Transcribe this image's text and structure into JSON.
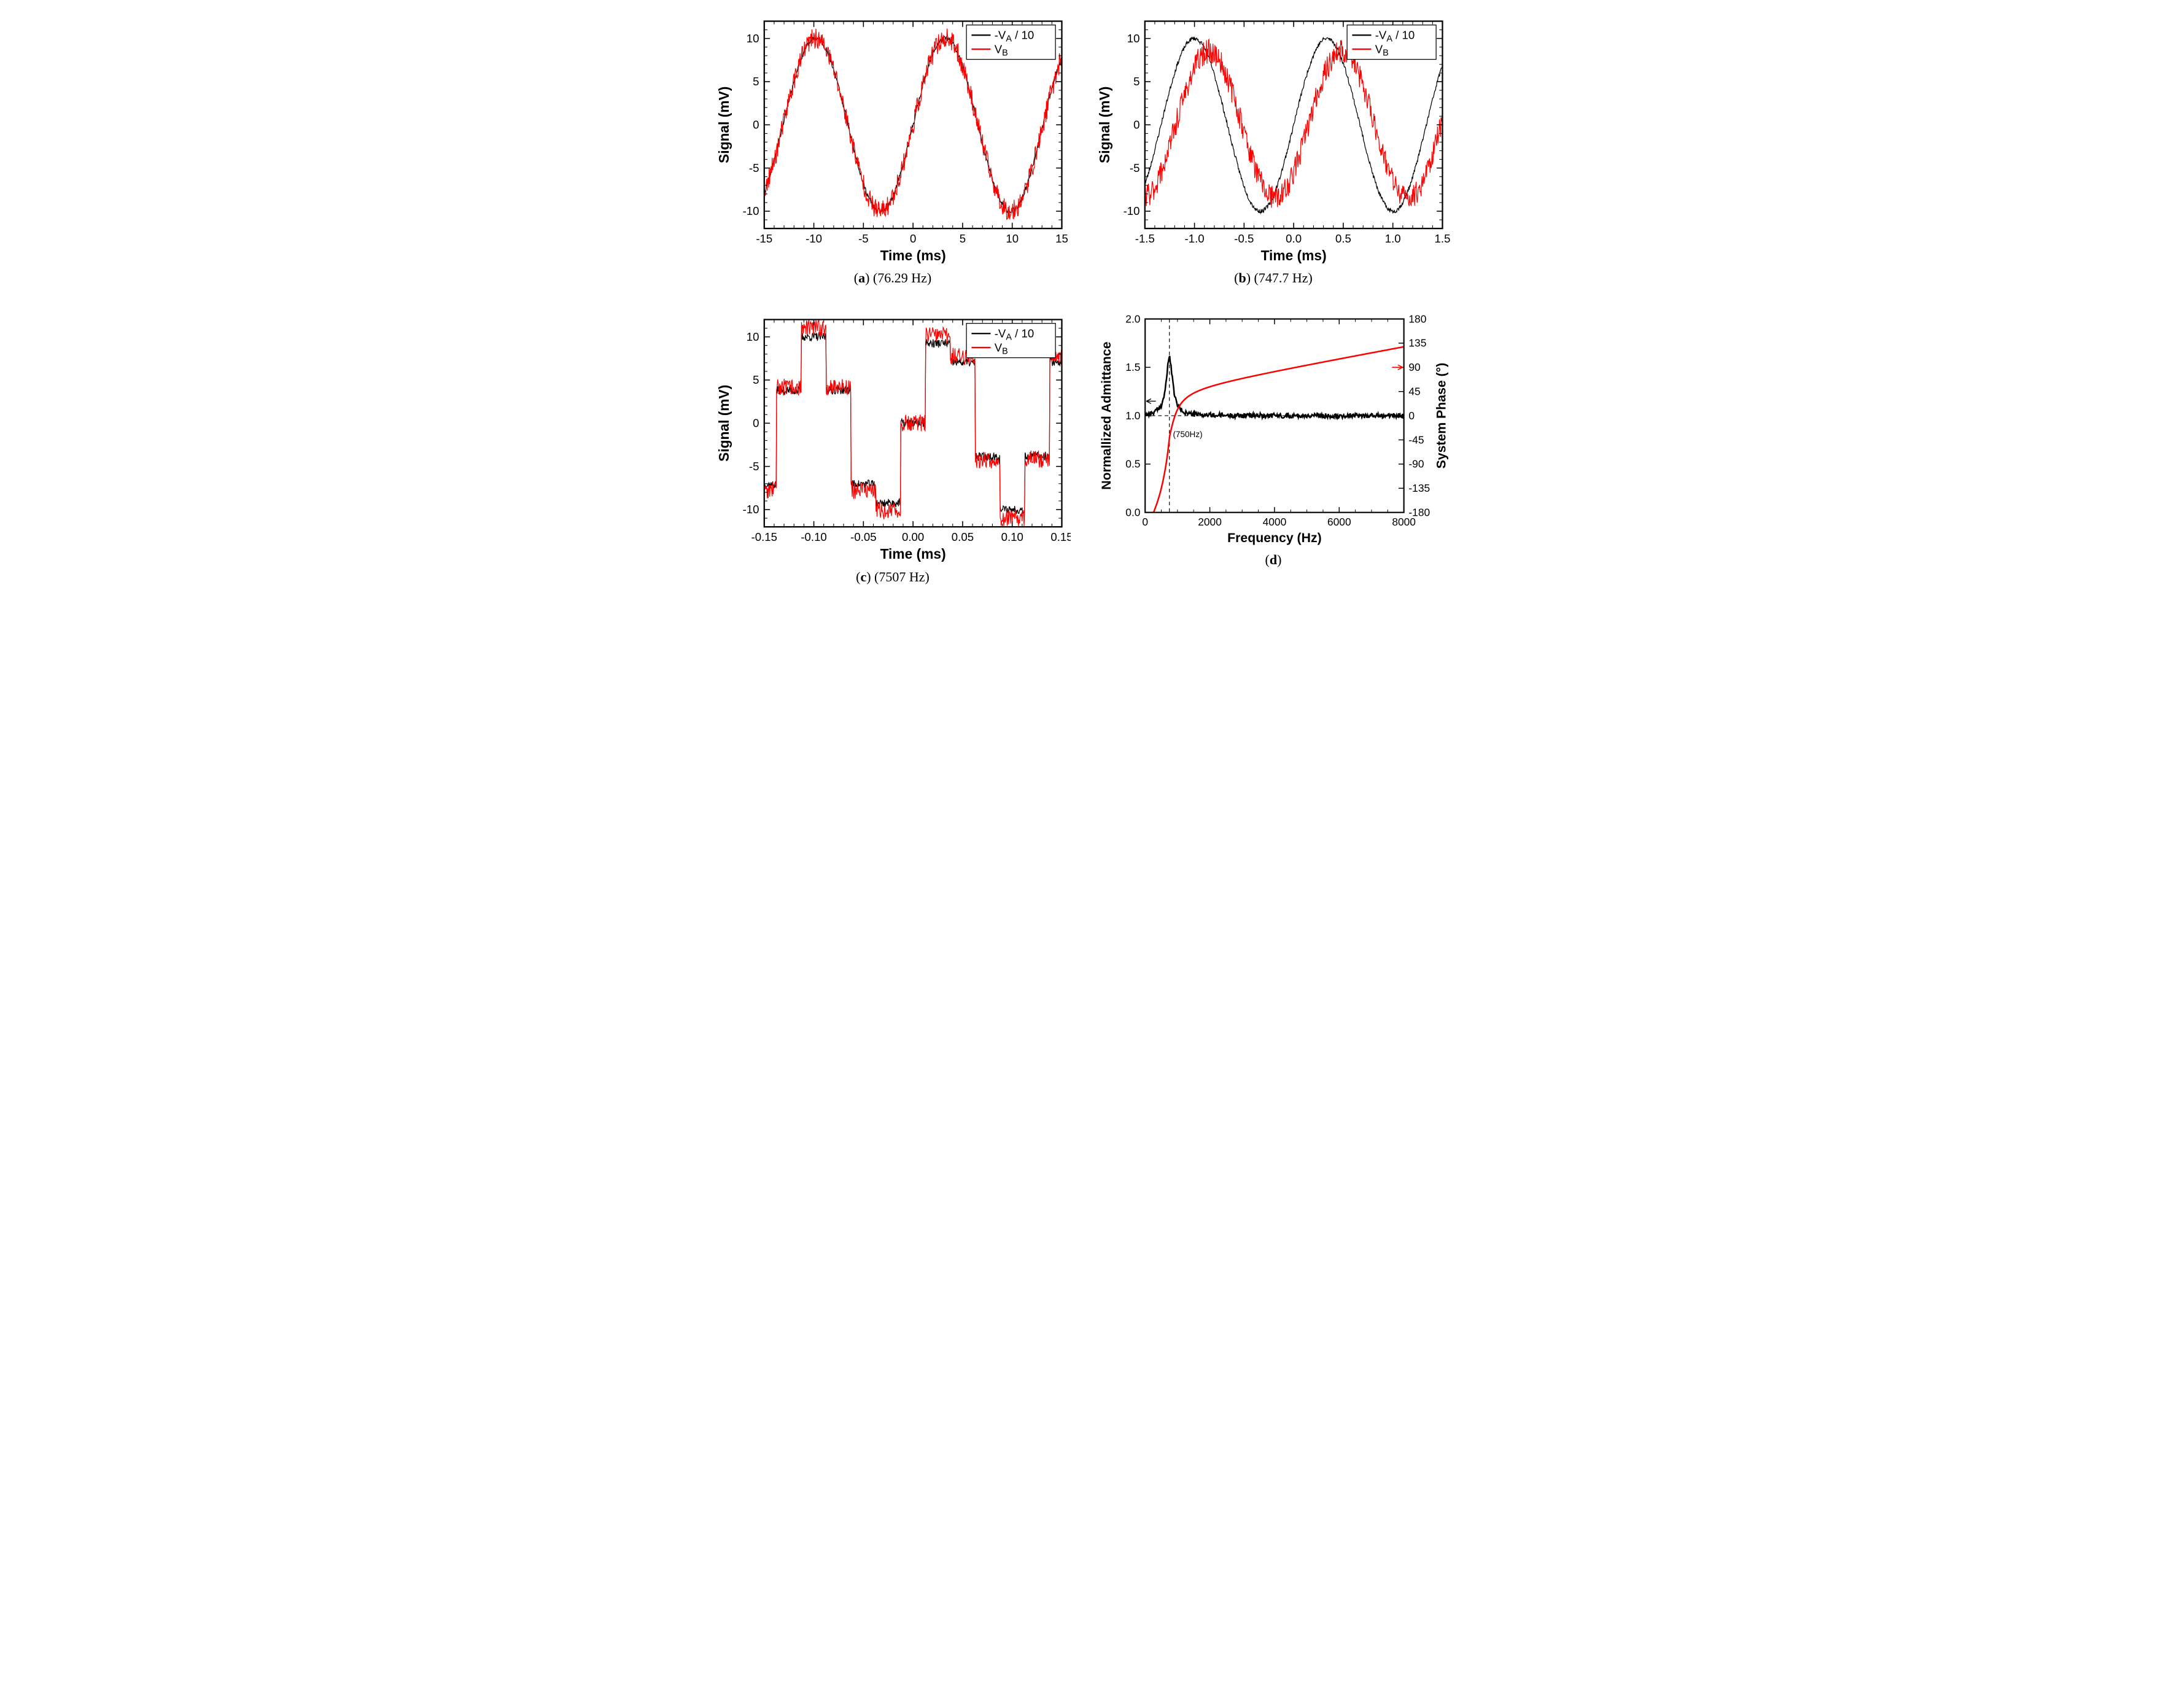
{
  "figure": {
    "background": "#ffffff",
    "axis_color": "#000000",
    "tick_len_major": 9,
    "tick_len_minor": 5,
    "tick_width": 1.5,
    "axis_width": 2.2,
    "plot_line_width": 1.2,
    "label_fontsize": 22,
    "tick_fontsize": 18,
    "caption_fontsize": 22,
    "legend_fontsize": 18,
    "legend_box_stroke": "#000000",
    "legend_box_fill": "#ffffff"
  },
  "series_colors": {
    "black": "#000000",
    "red": "#ff0000"
  },
  "panel_a": {
    "caption_tag": "a",
    "caption_text": "(76.29 Hz)",
    "xlabel": "Time (ms)",
    "ylabel": "Signal (mV)",
    "xlim": [
      -15,
      15
    ],
    "ylim": [
      -12,
      12
    ],
    "xticks_major": [
      -15,
      -10,
      -5,
      0,
      5,
      10,
      15
    ],
    "xticks_minor_step": 1,
    "yticks_major": [
      -10,
      -5,
      0,
      5,
      10
    ],
    "yticks_minor_step": 1,
    "legend": [
      {
        "color": "#000000",
        "label_html": "-V<tspan baseline-shift=\"-4\" font-size=\"14\">A</tspan> / 10"
      },
      {
        "color": "#ff0000",
        "label_html": "V<tspan baseline-shift=\"-4\" font-size=\"14\">B</tspan>"
      }
    ],
    "sine_freq_hz": 76.29,
    "amp_black": 10.0,
    "amp_red": 10.0,
    "phase_red_deg": 0,
    "noise_black": 0.3,
    "noise_red": 1.2,
    "n_points": 600
  },
  "panel_b": {
    "caption_tag": "b",
    "caption_text": "(747.7 Hz)",
    "xlabel": "Time (ms)",
    "ylabel": "Signal (mV)",
    "xlim": [
      -1.5,
      1.5
    ],
    "ylim": [
      -12,
      12
    ],
    "xticks_major": [
      -1.5,
      -1.0,
      -0.5,
      0.0,
      0.5,
      1.0,
      1.5
    ],
    "xtick_labels": [
      "-1.5",
      "-1.0",
      "-0.5",
      "0.0",
      "0.5",
      "1.0",
      "1.5"
    ],
    "xticks_minor_step": 0.1,
    "yticks_major": [
      -10,
      -5,
      0,
      5,
      10
    ],
    "yticks_minor_step": 1,
    "legend": [
      {
        "color": "#000000",
        "label_html": "-V<tspan baseline-shift=\"-4\" font-size=\"14\">A</tspan> / 10"
      },
      {
        "color": "#ff0000",
        "label_html": "V<tspan baseline-shift=\"-4\" font-size=\"14\">B</tspan>"
      }
    ],
    "sine_freq_hz": 747.7,
    "amp_black": 10.0,
    "amp_red": 8.5,
    "phase_red_deg": -40,
    "noise_black": 0.25,
    "noise_red": 1.4,
    "n_points": 600
  },
  "panel_c": {
    "caption_tag": "c",
    "caption_text": "(7507 Hz)",
    "xlabel": "Time (ms)",
    "ylabel": "Signal (mV)",
    "xlim": [
      -0.15,
      0.15
    ],
    "ylim": [
      -12,
      12
    ],
    "xticks_major": [
      -0.15,
      -0.1,
      -0.05,
      0.0,
      0.05,
      0.1,
      0.15
    ],
    "xtick_labels": [
      "-0.15",
      "-0.10",
      "-0.05",
      "0.00",
      "0.05",
      "0.10",
      "0.15"
    ],
    "xticks_minor_step": 0.01,
    "yticks_major": [
      -10,
      -5,
      0,
      5,
      10
    ],
    "yticks_minor_step": 1,
    "legend": [
      {
        "color": "#000000",
        "label_html": "-V<tspan baseline-shift=\"-4\" font-size=\"14\">A</tspan> / 10"
      },
      {
        "color": "#ff0000",
        "label_html": "V<tspan baseline-shift=\"-4\" font-size=\"14\">B</tspan>"
      }
    ],
    "sine_freq_hz": 7507,
    "amp_black": 10.0,
    "amp_red": 11.0,
    "phase_red_deg": 0,
    "noise_black": 0.5,
    "noise_red": 1.0,
    "n_points": 600,
    "quant_step_ms": 0.025
  },
  "panel_d": {
    "caption_tag": "d",
    "caption_text": "",
    "xlabel": "Frequency (Hz)",
    "ylabel_left": "Normallized Admittance",
    "ylabel_right": "System Phase (°)",
    "xlim": [
      0,
      8000
    ],
    "ylim_left": [
      0.0,
      2.0
    ],
    "ylim_right": [
      -180,
      180
    ],
    "xticks_major": [
      0,
      2000,
      4000,
      6000,
      8000
    ],
    "xticks_minor_step": 500,
    "yticks_left": [
      0.0,
      0.5,
      1.0,
      1.5,
      2.0
    ],
    "yticks_left_labels": [
      "0.0",
      "0.5",
      "1.0",
      "1.5",
      "2.0"
    ],
    "yticks_right": [
      -180,
      -135,
      -90,
      -45,
      0,
      45,
      90,
      135,
      180
    ],
    "annotation_freq": 750,
    "annotation_label": "(750Hz)",
    "admittance_peak_value": 1.6,
    "admittance_baseline": 1.0,
    "admittance_noise": 0.025,
    "phase_curve_color": "#ff0000",
    "admittance_curve_color": "#000000",
    "curve_width": 2.6,
    "dashed_color": "#000000"
  }
}
